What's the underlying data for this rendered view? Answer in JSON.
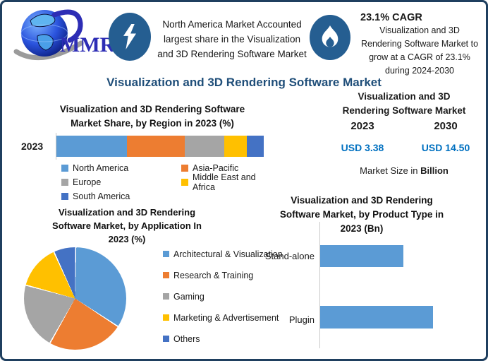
{
  "page": {
    "title": "Visualization and 3D Rendering Software Market"
  },
  "header": {
    "logo": {
      "text": "MMR"
    },
    "fact_na": {
      "lines": [
        "North America Market Accounted",
        "largest share in the Visualization",
        "and 3D Rendering Software Market"
      ]
    },
    "fact_cagr": {
      "headline": "23.1% CAGR",
      "lines": [
        "Visualization and 3D",
        "Rendering Software Market to",
        "grow at a CAGR of 23.1%",
        "during 2024-2030"
      ]
    }
  },
  "market_size_panel": {
    "title_lines": [
      "Visualization and 3D",
      "Rendering Software Market"
    ],
    "year_start": "2023",
    "year_end": "2030",
    "value_start": "USD 3.38",
    "value_end": "USD 14.50",
    "caption_text": "Market Size in ",
    "caption_bold": "Billion"
  },
  "chart_data": [
    {
      "type": "bar",
      "subtype": "stacked-horizontal",
      "title_lines": [
        "Visualization and 3D Rendering Software",
        "Market Share, by Region in 2023 (%)"
      ],
      "category": "2023",
      "unit": "%",
      "series": [
        {
          "name": "North America",
          "value": 34,
          "color": "#5B9BD5"
        },
        {
          "name": "Asia-Pacific",
          "value": 28,
          "color": "#ED7D31"
        },
        {
          "name": "Europe",
          "value": 19,
          "color": "#A5A5A5"
        },
        {
          "name": "Middle East and Africa",
          "value": 11,
          "color": "#FFC000"
        },
        {
          "name": "South America",
          "value": 8,
          "color": "#4472C4"
        }
      ]
    },
    {
      "type": "pie",
      "title_lines": [
        "Visualization and 3D Rendering",
        "Software Market, by Application In",
        "2023 (%)"
      ],
      "unit": "%",
      "start_angle_deg": 0,
      "direction": "clockwise",
      "slices": [
        {
          "name": "Architectural & Visualization",
          "value": 34,
          "color": "#5B9BD5"
        },
        {
          "name": "Research & Training",
          "value": 24,
          "color": "#ED7D31"
        },
        {
          "name": "Gaming",
          "value": 21,
          "color": "#A5A5A5"
        },
        {
          "name": "Marketing & Advertisement",
          "value": 14,
          "color": "#FFC000"
        },
        {
          "name": "Others",
          "value": 7,
          "color": "#4472C4"
        }
      ]
    },
    {
      "type": "bar",
      "subtype": "horizontal",
      "title_lines": [
        "Visualization and 3D Rendering",
        "Software Market, by Product Type in",
        "2023 (Bn)"
      ],
      "categories": [
        "Stand-alone",
        "Plugin"
      ],
      "values_pct_of_max": [
        74,
        100
      ],
      "bar_color": "#5B9BD5"
    }
  ],
  "colors": {
    "accent_title": "#1F4E79",
    "icon_circle": "#255E91",
    "frame_border": "#1F3F5F",
    "usd_value": "#0070C0",
    "logo_text": "#2D2DB5"
  }
}
